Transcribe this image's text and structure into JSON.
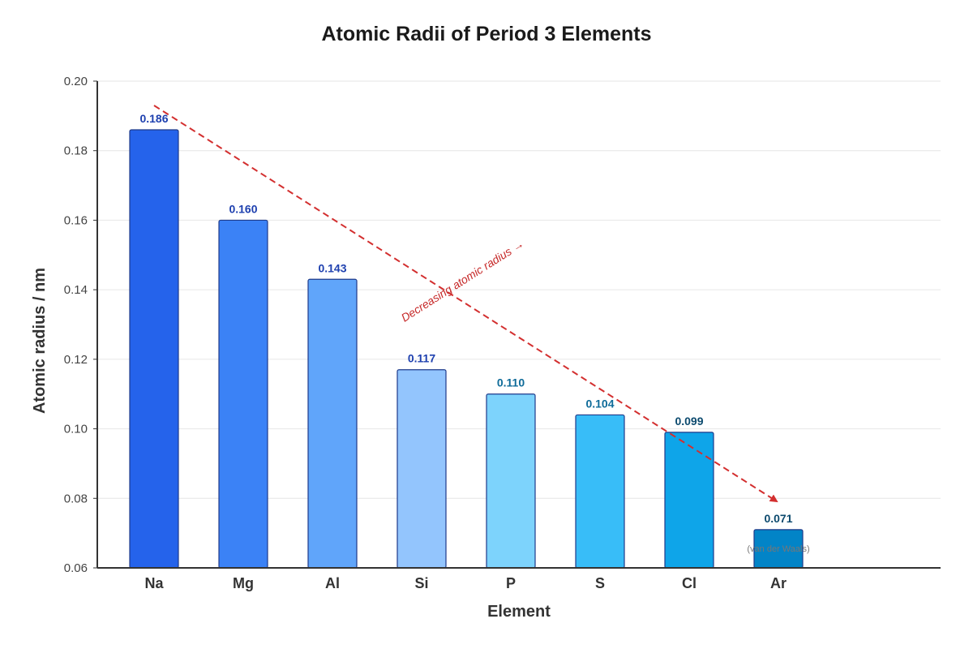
{
  "chart_data": {
    "type": "bar",
    "title": "Atomic Radii of Period 3 Elements",
    "xlabel": "Element",
    "ylabel": "Atomic radius / nm",
    "ylim": [
      0.06,
      0.2
    ],
    "yticks": [
      "0.06",
      "0.08",
      "0.10",
      "0.12",
      "0.14",
      "0.16",
      "0.18",
      "0.20"
    ],
    "grid": true,
    "categories": [
      "Na",
      "Mg",
      "Al",
      "Si",
      "P",
      "S",
      "Cl",
      "Ar"
    ],
    "values": [
      0.186,
      0.16,
      0.143,
      0.117,
      0.11,
      0.104,
      0.099,
      0.071
    ],
    "value_labels": [
      "0.186",
      "0.160",
      "0.143",
      "0.117",
      "0.110",
      "0.104",
      "0.099",
      "0.071"
    ],
    "bar_colors": [
      "#2563eb",
      "#3b82f6",
      "#60a5fa",
      "#93c5fd",
      "#7dd3fc",
      "#38bdf8",
      "#0ea5e9",
      "#0284c7"
    ],
    "label_colors": [
      "#1e40af",
      "#1e40af",
      "#1e40af",
      "#1e40af",
      "#0e6b99",
      "#0e6b99",
      "#0c4a6e",
      "#0c4a6e"
    ],
    "annotations": {
      "trend_text": "Decreasing atomic radius →",
      "trend_color": "#d32f2f",
      "ar_note": "(van der Waals)"
    }
  }
}
